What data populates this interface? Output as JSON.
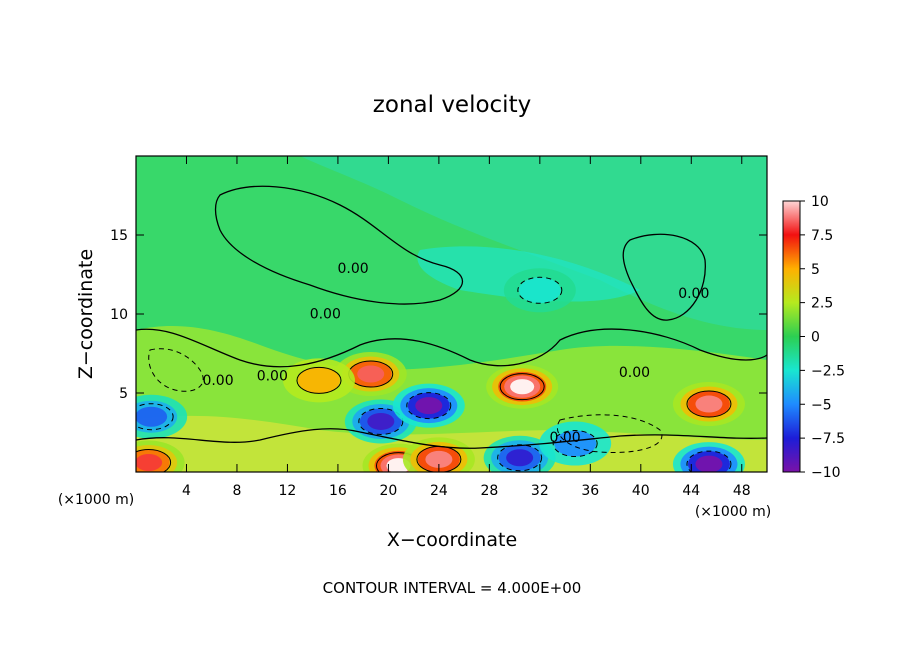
{
  "chart_data": {
    "type": "heatmap",
    "title": "zonal velocity",
    "xlabel": "X−coordinate",
    "ylabel": "Z−coordinate",
    "x_unit_left": "(×1000 m)",
    "x_unit_right": "(×1000 m)",
    "footer": "CONTOUR INTERVAL = 4.000E+00",
    "xlim": [
      0,
      50
    ],
    "ylim": [
      0,
      20
    ],
    "x_ticks": [
      4,
      8,
      12,
      16,
      20,
      24,
      28,
      32,
      36,
      40,
      44,
      48
    ],
    "y_ticks": [
      5,
      10,
      15
    ],
    "colorbar": {
      "min": -10,
      "max": 10,
      "tick_values": [
        10,
        7.5,
        5,
        2.5,
        0,
        -2.5,
        -5,
        -7.5,
        -10
      ],
      "tick_labels": [
        "10",
        "7.5",
        "5",
        "2.5",
        "0",
        "−2.5",
        "−5",
        "−7.5",
        "−10"
      ]
    },
    "contour_labels": [
      {
        "text": "0.00",
        "x": 17.2,
        "y": 12.6
      },
      {
        "text": "0.00",
        "x": 15.0,
        "y": 9.7
      },
      {
        "text": "0.00",
        "x": 6.5,
        "y": 5.5
      },
      {
        "text": "0.00",
        "x": 10.8,
        "y": 5.8
      },
      {
        "text": "0.00",
        "x": 34.0,
        "y": 1.9
      },
      {
        "text": "0.00",
        "x": 39.5,
        "y": 6.0
      },
      {
        "text": "0.00",
        "x": 44.2,
        "y": 11.0
      }
    ],
    "features": [
      {
        "x": 1.2,
        "y": 3.5,
        "value": -6
      },
      {
        "x": 1.0,
        "y": 0.6,
        "value": 8
      },
      {
        "x": 18.6,
        "y": 6.2,
        "value": 8.5
      },
      {
        "x": 19.4,
        "y": 3.2,
        "value": -8.5
      },
      {
        "x": 23.2,
        "y": 4.2,
        "value": -10
      },
      {
        "x": 20.8,
        "y": 0.4,
        "value": 11
      },
      {
        "x": 24.0,
        "y": 0.8,
        "value": 9
      },
      {
        "x": 30.6,
        "y": 5.4,
        "value": 11
      },
      {
        "x": 30.4,
        "y": 0.9,
        "value": -8
      },
      {
        "x": 34.8,
        "y": 1.8,
        "value": -5
      },
      {
        "x": 45.4,
        "y": 4.3,
        "value": 9
      },
      {
        "x": 45.4,
        "y": 0.5,
        "value": -10
      },
      {
        "x": 14.5,
        "y": 5.8,
        "value": 5
      },
      {
        "x": 32.0,
        "y": 11.5,
        "value": -2.5
      }
    ]
  }
}
